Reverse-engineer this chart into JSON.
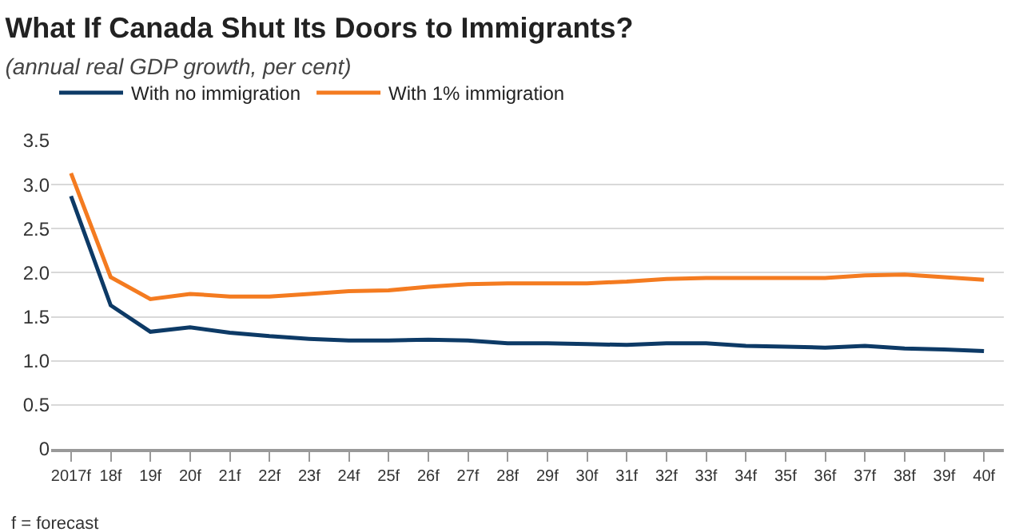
{
  "chart_data": {
    "type": "line",
    "title": "What If Canada Shut Its Doors to Immigrants?",
    "subtitle": "(annual real GDP growth, per cent)",
    "categories": [
      "2017f",
      "18f",
      "19f",
      "20f",
      "21f",
      "22f",
      "23f",
      "24f",
      "25f",
      "26f",
      "27f",
      "28f",
      "29f",
      "30f",
      "31f",
      "32f",
      "33f",
      "34f",
      "35f",
      "36f",
      "37f",
      "38f",
      "39f",
      "40f"
    ],
    "series": [
      {
        "name": "With no immigration",
        "color": "#0d3a66",
        "values": [
          2.87,
          1.63,
          1.33,
          1.38,
          1.32,
          1.28,
          1.25,
          1.23,
          1.23,
          1.24,
          1.23,
          1.2,
          1.2,
          1.19,
          1.18,
          1.2,
          1.2,
          1.17,
          1.16,
          1.15,
          1.17,
          1.14,
          1.13,
          1.11
        ]
      },
      {
        "name": "With 1% immigration",
        "color": "#f47b20",
        "values": [
          3.13,
          1.95,
          1.7,
          1.76,
          1.73,
          1.73,
          1.76,
          1.79,
          1.8,
          1.84,
          1.87,
          1.88,
          1.88,
          1.88,
          1.9,
          1.93,
          1.94,
          1.94,
          1.94,
          1.94,
          1.97,
          1.98,
          1.95,
          1.92
        ]
      }
    ],
    "ylim": [
      0,
      3.5
    ],
    "yticks": [
      0,
      {
        "value": 0.5,
        "label": "0.5"
      },
      {
        "value": 1,
        "label": "1.0"
      },
      {
        "value": 1.5,
        "label": "1.5"
      },
      {
        "value": 2,
        "label": "2.0"
      },
      {
        "value": 2.5,
        "label": "2.5"
      },
      {
        "value": 3,
        "label": "3.0"
      },
      {
        "value": 3.5,
        "label": "3.5"
      }
    ],
    "grid": "y",
    "legend": "top left",
    "marker": "none",
    "line_style": "solid",
    "annotations": [
      "f = forecast"
    ]
  }
}
